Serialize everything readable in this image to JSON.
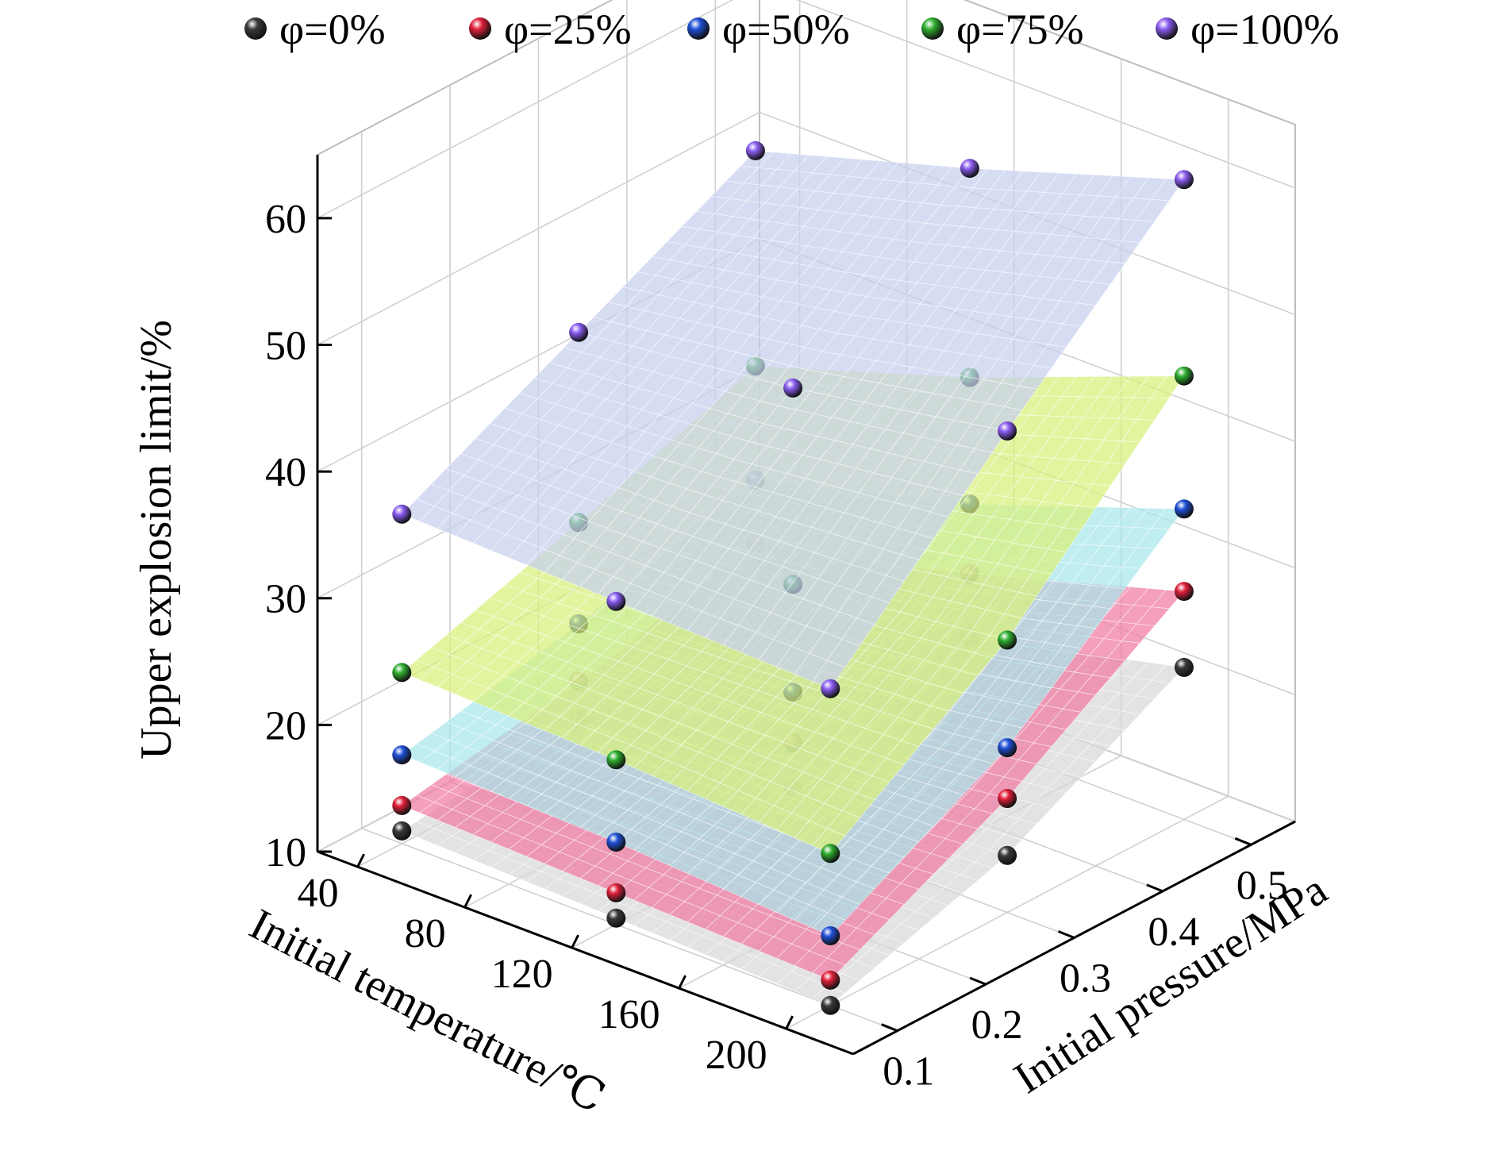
{
  "chart_data": {
    "type": "surface3d",
    "title": "",
    "xlabel": "Initial temperature/℃",
    "ylabel": "Initial pressure/MPa",
    "zlabel": "Upper explosion limit/%",
    "xlim": [
      25,
      225
    ],
    "ylim": [
      0.05,
      0.55
    ],
    "zlim": [
      10,
      65
    ],
    "x_ticks": [
      "40",
      "80",
      "120",
      "160",
      "200"
    ],
    "y_ticks": [
      "0.1",
      "0.2",
      "0.3",
      "0.4",
      "0.5"
    ],
    "z_ticks": [
      "10",
      "20",
      "30",
      "40",
      "50",
      "60"
    ],
    "temperatures": [
      40,
      120,
      200
    ],
    "pressures": [
      0.1,
      0.3,
      0.5
    ],
    "grid": true,
    "legend_position": "top",
    "series": [
      {
        "name": "φ=0%",
        "color": "#3a3a3a",
        "surface_color": "#d8d8d8",
        "points": [
          {
            "t": 40,
            "p": 0.1,
            "z": 11.0
          },
          {
            "t": 120,
            "p": 0.1,
            "z": 10.5
          },
          {
            "t": 200,
            "p": 0.1,
            "z": 10.0
          },
          {
            "t": 40,
            "p": 0.3,
            "z": 12.5
          },
          {
            "t": 120,
            "p": 0.3,
            "z": 13.5
          },
          {
            "t": 200,
            "p": 0.3,
            "z": 14.5
          },
          {
            "t": 40,
            "p": 0.5,
            "z": 15.0
          },
          {
            "t": 120,
            "p": 0.5,
            "z": 18.0
          },
          {
            "t": 200,
            "p": 0.5,
            "z": 22.0
          }
        ]
      },
      {
        "name": "φ=25%",
        "color": "#e0203a",
        "surface_color": "#f07aa2",
        "points": [
          {
            "t": 40,
            "p": 0.1,
            "z": 13.0
          },
          {
            "t": 120,
            "p": 0.1,
            "z": 12.5
          },
          {
            "t": 200,
            "p": 0.1,
            "z": 12.0
          },
          {
            "t": 40,
            "p": 0.3,
            "z": 15.5
          },
          {
            "t": 120,
            "p": 0.3,
            "z": 17.0
          },
          {
            "t": 200,
            "p": 0.3,
            "z": 19.0
          },
          {
            "t": 40,
            "p": 0.5,
            "z": 19.0
          },
          {
            "t": 120,
            "p": 0.5,
            "z": 23.0
          },
          {
            "t": 200,
            "p": 0.5,
            "z": 28.0
          }
        ]
      },
      {
        "name": "φ=50%",
        "color": "#1f4fd6",
        "surface_color": "#a8e6ea",
        "points": [
          {
            "t": 40,
            "p": 0.1,
            "z": 17.0
          },
          {
            "t": 120,
            "p": 0.1,
            "z": 16.5
          },
          {
            "t": 200,
            "p": 0.1,
            "z": 15.5
          },
          {
            "t": 40,
            "p": 0.3,
            "z": 20.0
          },
          {
            "t": 120,
            "p": 0.3,
            "z": 21.0
          },
          {
            "t": 200,
            "p": 0.3,
            "z": 23.0
          },
          {
            "t": 40,
            "p": 0.5,
            "z": 24.0
          },
          {
            "t": 120,
            "p": 0.5,
            "z": 28.5
          },
          {
            "t": 200,
            "p": 0.5,
            "z": 34.5
          }
        ]
      },
      {
        "name": "φ=75%",
        "color": "#2fae2f",
        "surface_color": "#d8f07a",
        "points": [
          {
            "t": 40,
            "p": 0.1,
            "z": 23.5
          },
          {
            "t": 120,
            "p": 0.1,
            "z": 23.0
          },
          {
            "t": 200,
            "p": 0.1,
            "z": 22.0
          },
          {
            "t": 40,
            "p": 0.3,
            "z": 28.0
          },
          {
            "t": 120,
            "p": 0.3,
            "z": 29.5
          },
          {
            "t": 200,
            "p": 0.3,
            "z": 31.5
          },
          {
            "t": 40,
            "p": 0.5,
            "z": 33.0
          },
          {
            "t": 120,
            "p": 0.5,
            "z": 38.5
          },
          {
            "t": 200,
            "p": 0.5,
            "z": 45.0
          }
        ]
      },
      {
        "name": "φ=100%",
        "color": "#8a5cf0",
        "surface_color": "#c6d0ef",
        "points": [
          {
            "t": 40,
            "p": 0.1,
            "z": 36.0
          },
          {
            "t": 120,
            "p": 0.1,
            "z": 35.5
          },
          {
            "t": 200,
            "p": 0.1,
            "z": 35.0
          },
          {
            "t": 40,
            "p": 0.3,
            "z": 43.0
          },
          {
            "t": 120,
            "p": 0.3,
            "z": 45.0
          },
          {
            "t": 200,
            "p": 0.3,
            "z": 48.0
          },
          {
            "t": 40,
            "p": 0.5,
            "z": 50.0
          },
          {
            "t": 120,
            "p": 0.5,
            "z": 55.0
          },
          {
            "t": 200,
            "p": 0.5,
            "z": 60.5
          }
        ]
      }
    ]
  }
}
